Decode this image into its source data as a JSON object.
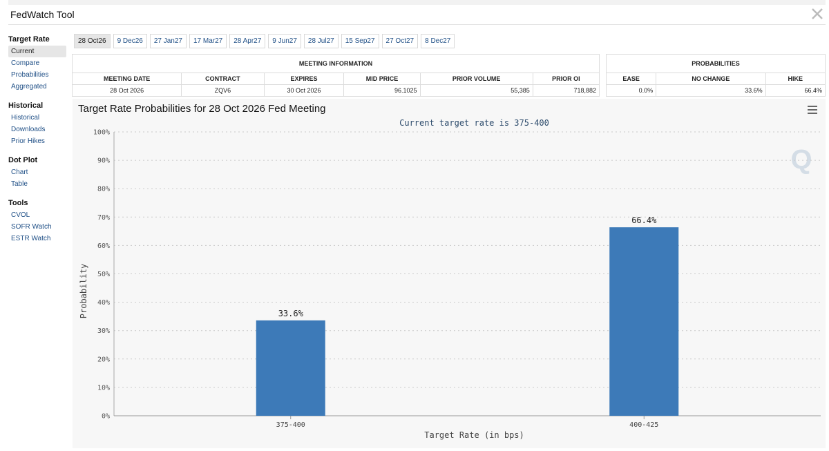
{
  "app": {
    "title": "FedWatch Tool"
  },
  "sidebar": {
    "sections": [
      {
        "title": "Target Rate",
        "items": [
          "Current",
          "Compare",
          "Probabilities",
          "Aggregated"
        ]
      },
      {
        "title": "Historical",
        "items": [
          "Historical",
          "Downloads",
          "Prior Hikes"
        ]
      },
      {
        "title": "Dot Plot",
        "items": [
          "Chart",
          "Table"
        ]
      },
      {
        "title": "Tools",
        "items": [
          "CVOL",
          "SOFR Watch",
          "ESTR Watch"
        ]
      }
    ],
    "active_item": "Current"
  },
  "tabs": [
    "28 Oct26",
    "9 Dec26",
    "27 Jan27",
    "17 Mar27",
    "28 Apr27",
    "9 Jun27",
    "28 Jul27",
    "15 Sep27",
    "27 Oct27",
    "8 Dec27"
  ],
  "active_tab": "28 Oct26",
  "meeting_info": {
    "header": "MEETING INFORMATION",
    "columns": [
      "MEETING DATE",
      "CONTRACT",
      "EXPIRES",
      "MID PRICE",
      "PRIOR VOLUME",
      "PRIOR OI"
    ],
    "row": [
      "28 Oct 2026",
      "ZQV6",
      "30 Oct 2026",
      "96.1025",
      "55,385",
      "718,882"
    ]
  },
  "probabilities": {
    "header": "PROBABILITIES",
    "columns": [
      "EASE",
      "NO CHANGE",
      "HIKE"
    ],
    "row": [
      "0.0%",
      "33.6%",
      "66.4%"
    ]
  },
  "chart": {
    "title": "Target Rate Probabilities for 28 Oct 2026 Fed Meeting",
    "menu_icon": "hamburger-menu-icon",
    "watermark": "Q"
  },
  "chart_data": {
    "type": "bar",
    "subtitle": "Current target rate is 375-400",
    "categories": [
      "375-400",
      "400-425"
    ],
    "values": [
      33.6,
      66.4
    ],
    "data_labels": [
      "33.6%",
      "66.4%"
    ],
    "xlabel": "Target Rate (in bps)",
    "ylabel": "Probability",
    "ylim": [
      0,
      100
    ],
    "yticks": [
      "0%",
      "10%",
      "20%",
      "30%",
      "40%",
      "50%",
      "60%",
      "70%",
      "80%",
      "90%",
      "100%"
    ],
    "grid": true,
    "bar_color": "#3d7ab8"
  }
}
